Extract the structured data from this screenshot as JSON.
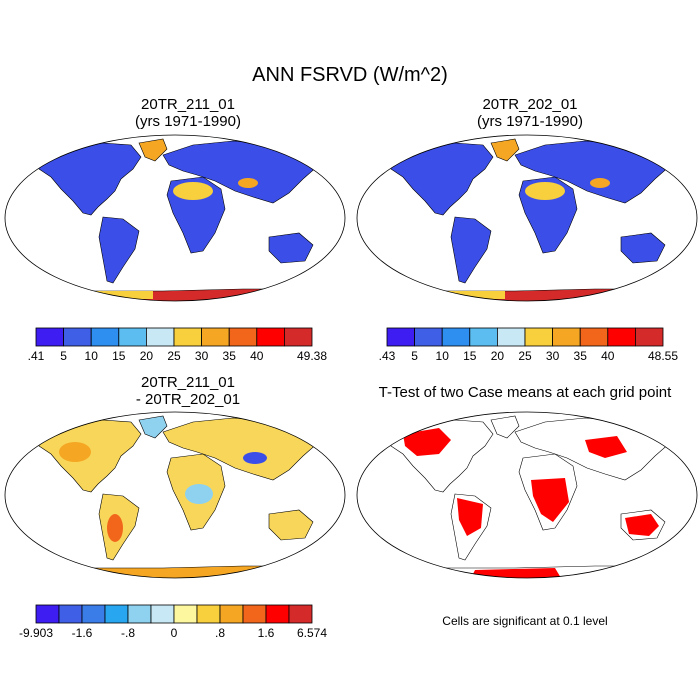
{
  "title": "ANN FSRVD (W/m^2)",
  "panels": [
    {
      "id": "case1",
      "title_line1": "20TR_211_01",
      "title_line2": "(yrs 1971-1990)"
    },
    {
      "id": "case2",
      "title_line1": "20TR_202_01",
      "title_line2": "(yrs 1971-1990)"
    },
    {
      "id": "diff",
      "title_line1": "20TR_211_01",
      "title_line2": "- 20TR_202_01"
    },
    {
      "id": "ttest",
      "title_line1": "T-Test of two Case means at each grid point",
      "note": "Cells are significant at 0.1 level"
    }
  ],
  "colorbars": {
    "case1": {
      "colors": [
        "#3d1df2",
        "#3f5fe6",
        "#2e8ff0",
        "#5cbdf0",
        "#c8e8f5",
        "#f8cf3c",
        "#f5a623",
        "#f2661c",
        "#ff0000",
        "#d42a2a"
      ],
      "labels": [
        ".41",
        "5",
        "10",
        "15",
        "20",
        "25",
        "30",
        "35",
        "40",
        "49.38"
      ]
    },
    "case2": {
      "colors": [
        "#3d1df2",
        "#3f5fe6",
        "#2e8ff0",
        "#5cbdf0",
        "#c8e8f5",
        "#f8cf3c",
        "#f5a623",
        "#f2661c",
        "#ff0000",
        "#d42a2a"
      ],
      "labels": [
        ".43",
        "5",
        "10",
        "15",
        "20",
        "25",
        "30",
        "35",
        "40",
        "48.55"
      ]
    },
    "diff": {
      "colors": [
        "#3d1df2",
        "#3f5fe6",
        "#3b7de8",
        "#28a6f0",
        "#8ed2f0",
        "#c8e8f5",
        "#fdf7a0",
        "#f8cf3c",
        "#f5a623",
        "#f2661c",
        "#ff0000",
        "#d42a2a"
      ],
      "labels": [
        "-9.903",
        "-1.6",
        "-.8",
        "0",
        ".8",
        "1.6",
        "6.574"
      ]
    }
  },
  "colors": {
    "land_case": "#3b4fe8",
    "land_diff": "#f8d65a",
    "significant": "#ff0000",
    "coast": "#000000"
  }
}
